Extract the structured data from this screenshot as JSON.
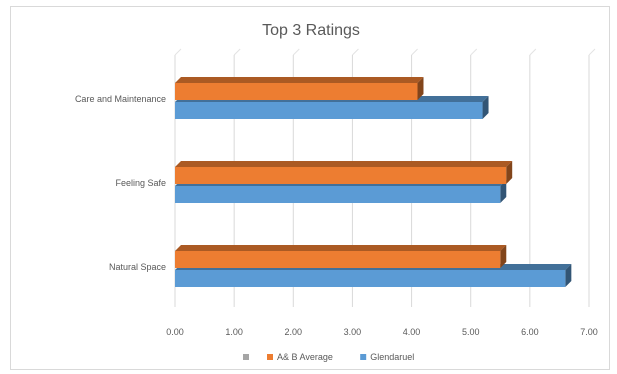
{
  "chart_data": {
    "type": "bar",
    "orientation": "horizontal",
    "style": "3d-clustered",
    "title": "Top 3 Ratings",
    "categories": [
      "Care and Maintenance",
      "Feeling Safe",
      "Natural Space"
    ],
    "series": [
      {
        "name": "A& B Average",
        "color": "#ED7D31",
        "values": [
          4.1,
          5.6,
          5.5
        ]
      },
      {
        "name": "Glendaruel",
        "color": "#5B9BD5",
        "values": [
          5.2,
          5.5,
          6.6
        ]
      }
    ],
    "legend": {
      "position": "bottom",
      "items": [
        {
          "label": "",
          "color": "#A5A5A5"
        },
        {
          "label": "A& B Average",
          "color": "#ED7D31"
        },
        {
          "label": "Glendaruel",
          "color": "#5B9BD5"
        }
      ]
    },
    "xaxis": {
      "min": 0,
      "max": 7,
      "ticks": [
        "0.00",
        "1.00",
        "2.00",
        "3.00",
        "4.00",
        "5.00",
        "6.00",
        "7.00"
      ]
    },
    "grid": true
  }
}
